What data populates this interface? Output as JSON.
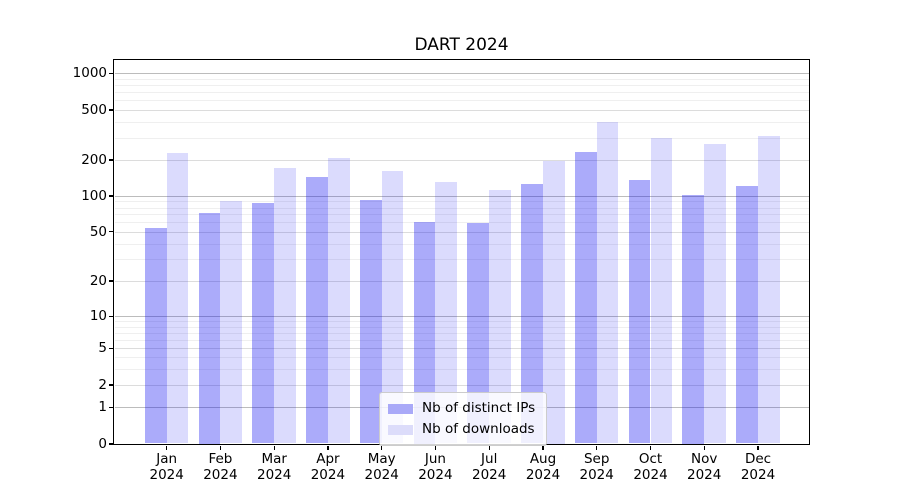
{
  "chart_data": {
    "type": "bar",
    "title": "DART 2024",
    "year": "2024",
    "categories": [
      "Jan",
      "Feb",
      "Mar",
      "Apr",
      "May",
      "Jun",
      "Jul",
      "Aug",
      "Sep",
      "Oct",
      "Nov",
      "Dec"
    ],
    "series": [
      {
        "name": "Nb of distinct IPs",
        "fill": "rgba(15,15,240,0.35)",
        "legend_color": "#a9a9f8",
        "values": [
          54,
          72,
          88,
          145,
          92,
          61,
          59,
          125,
          230,
          135,
          103,
          122
        ]
      },
      {
        "name": "Nb of downloads",
        "fill": "rgba(15,15,240,0.15)",
        "legend_color": "#dcdcfa",
        "values": [
          228,
          90,
          170,
          208,
          162,
          130,
          112,
          196,
          400,
          300,
          270,
          310
        ]
      }
    ],
    "yscale": "symlog",
    "ylim": [
      0,
      1000
    ],
    "ytick_labels": [
      "0",
      "1",
      "2",
      "5",
      "10",
      "20",
      "50",
      "100",
      "200",
      "500",
      "1000"
    ],
    "ytick_values": [
      0,
      1,
      2,
      5,
      10,
      20,
      50,
      100,
      200,
      500,
      1000
    ],
    "xlabel": "",
    "ylabel": "",
    "grid": true,
    "legend_position": "lower-center",
    "colors": {
      "major_gridline": "#bcbcbc",
      "labeled_gridline": "#dcdcdc",
      "minor_gridline": "#efefef",
      "spine": "#000000",
      "background": "#ffffff"
    }
  }
}
